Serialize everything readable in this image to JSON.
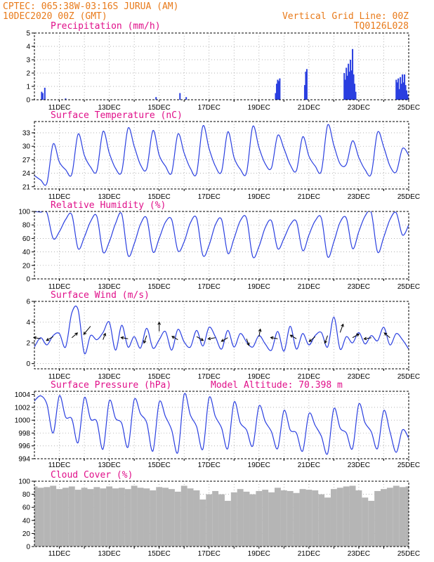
{
  "header": {
    "left_line1": "CPTEC:   065:38W-03:16S   JURUA (AM)",
    "left_line2": "10DEC2020 00Z (GMT)",
    "right_line1": "Vertical Grid Line: 00Z",
    "right_line2": "TQ0126L028"
  },
  "x_tick_labels": [
    "11DEC",
    "13DEC",
    "15DEC",
    "17DEC",
    "19DEC",
    "21DEC",
    "23DEC",
    "25DEC"
  ],
  "panels": {
    "precip": {
      "title": "Precipitation (mm/h)",
      "y_ticks": [
        "0",
        "1",
        "2",
        "3",
        "4",
        "5"
      ]
    },
    "temp": {
      "title": "Surface Temperature (nC)",
      "y_ticks": [
        "21",
        "24",
        "27",
        "30",
        "33"
      ]
    },
    "rh": {
      "title": "Relative Humidity (%)",
      "y_ticks": [
        "0",
        "20",
        "40",
        "60",
        "80",
        "100"
      ]
    },
    "wind": {
      "title": "Surface Wind (m/s)",
      "y_ticks": [
        "0",
        "2",
        "4",
        "6"
      ]
    },
    "pressure": {
      "title": "Surface Pressure (hPa)",
      "altitude": "Model Altitude: 70.398 m",
      "y_ticks": [
        "994",
        "996",
        "998",
        "1000",
        "1002",
        "1004"
      ]
    },
    "cloud": {
      "title": "Cloud Cover (%)",
      "y_ticks": [
        "0",
        "20",
        "40",
        "60",
        "80",
        "100"
      ]
    }
  },
  "chart_data": [
    {
      "type": "bar",
      "title": "Precipitation (mm/h)",
      "x_start": "10DEC2020 00Z",
      "x_end": "25DEC2020 00Z",
      "ylim": [
        0,
        5
      ],
      "grid": true,
      "bars": [
        {
          "x": "10DEC 07Z",
          "y": 0.6
        },
        {
          "x": "10DEC 08Z",
          "y": 0.5
        },
        {
          "x": "10DEC 10Z",
          "y": 0.9
        },
        {
          "x": "11DEC 06Z",
          "y": 0.1
        },
        {
          "x": "14DEC 21Z",
          "y": 0.2
        },
        {
          "x": "15DEC 20Z",
          "y": 0.5
        },
        {
          "x": "16DEC 02Z",
          "y": 0.2
        },
        {
          "x": "19DEC 16Z",
          "y": 0.5
        },
        {
          "x": "19DEC 17Z",
          "y": 1.2
        },
        {
          "x": "19DEC 18Z",
          "y": 1.5
        },
        {
          "x": "19DEC 19Z",
          "y": 1.4
        },
        {
          "x": "19DEC 20Z",
          "y": 1.6
        },
        {
          "x": "20DEC 20Z",
          "y": 1.1
        },
        {
          "x": "20DEC 21Z",
          "y": 2.1
        },
        {
          "x": "20DEC 22Z",
          "y": 2.3
        },
        {
          "x": "22DEC 10Z",
          "y": 2.0
        },
        {
          "x": "22DEC 11Z",
          "y": 1.5
        },
        {
          "x": "22DEC 12Z",
          "y": 2.4
        },
        {
          "x": "22DEC 13Z",
          "y": 1.8
        },
        {
          "x": "22DEC 14Z",
          "y": 2.7
        },
        {
          "x": "22DEC 15Z",
          "y": 2.1
        },
        {
          "x": "22DEC 16Z",
          "y": 3.0
        },
        {
          "x": "22DEC 17Z",
          "y": 2.2
        },
        {
          "x": "22DEC 18Z",
          "y": 3.8
        },
        {
          "x": "22DEC 19Z",
          "y": 1.9
        },
        {
          "x": "22DEC 20Z",
          "y": 1.2
        },
        {
          "x": "22DEC 21Z",
          "y": 0.6
        },
        {
          "x": "24DEC 12Z",
          "y": 1.5
        },
        {
          "x": "24DEC 13Z",
          "y": 1.3
        },
        {
          "x": "24DEC 14Z",
          "y": 1.6
        },
        {
          "x": "24DEC 15Z",
          "y": 0.8
        },
        {
          "x": "24DEC 16Z",
          "y": 1.7
        },
        {
          "x": "24DEC 17Z",
          "y": 1.2
        },
        {
          "x": "24DEC 18Z",
          "y": 1.9
        },
        {
          "x": "24DEC 19Z",
          "y": 1.3
        },
        {
          "x": "24DEC 20Z",
          "y": 1.9
        },
        {
          "x": "24DEC 21Z",
          "y": 1.1
        },
        {
          "x": "24DEC 22Z",
          "y": 0.7
        },
        {
          "x": "24DEC 23Z",
          "y": 0.4
        }
      ]
    },
    {
      "type": "line",
      "title": "Surface Temperature (nC)",
      "ylim": [
        20.5,
        35.5
      ],
      "grid": true,
      "x": [
        "10DEC 00Z",
        "10DEC 06Z",
        "10DEC 12Z",
        "10DEC 18Z",
        "11DEC 00Z",
        "11DEC 06Z",
        "11DEC 12Z",
        "11DEC 18Z",
        "12DEC 00Z",
        "12DEC 06Z",
        "12DEC 12Z",
        "12DEC 18Z",
        "13DEC 00Z",
        "13DEC 06Z",
        "13DEC 12Z",
        "13DEC 18Z",
        "14DEC 00Z",
        "14DEC 06Z",
        "14DEC 12Z",
        "14DEC 18Z",
        "15DEC 00Z",
        "15DEC 06Z",
        "15DEC 12Z",
        "15DEC 18Z",
        "16DEC 00Z",
        "16DEC 06Z",
        "16DEC 12Z",
        "16DEC 18Z",
        "17DEC 00Z",
        "17DEC 06Z",
        "17DEC 12Z",
        "17DEC 18Z",
        "18DEC 00Z",
        "18DEC 06Z",
        "18DEC 12Z",
        "18DEC 18Z",
        "19DEC 00Z",
        "19DEC 06Z",
        "19DEC 12Z",
        "19DEC 18Z",
        "20DEC 00Z",
        "20DEC 06Z",
        "20DEC 12Z",
        "20DEC 18Z",
        "21DEC 00Z",
        "21DEC 06Z",
        "21DEC 12Z",
        "21DEC 18Z",
        "22DEC 00Z",
        "22DEC 06Z",
        "22DEC 12Z",
        "22DEC 18Z",
        "23DEC 00Z",
        "23DEC 06Z",
        "23DEC 12Z",
        "23DEC 18Z",
        "24DEC 00Z",
        "24DEC 06Z",
        "24DEC 12Z",
        "24DEC 18Z",
        "25DEC 00Z"
      ],
      "values": [
        23.5,
        22.5,
        21.8,
        30.5,
        26.5,
        24.8,
        23.8,
        32.7,
        28.0,
        25.4,
        24.5,
        33.3,
        28.5,
        25.1,
        24.4,
        34.0,
        30.0,
        25.9,
        25.0,
        33.5,
        28.0,
        25.6,
        24.1,
        32.7,
        28.5,
        25.1,
        24.0,
        34.5,
        29.5,
        25.6,
        24.4,
        33.2,
        27.5,
        24.9,
        24.1,
        34.4,
        29.7,
        26.1,
        25.2,
        32.4,
        29.5,
        25.9,
        24.6,
        32.1,
        27.8,
        25.6,
        24.5,
        34.7,
        30.2,
        26.1,
        26.0,
        31.2,
        27.5,
        24.8,
        23.9,
        33.1,
        29.8,
        25.6,
        24.3,
        29.5,
        28.0
      ]
    },
    {
      "type": "line",
      "title": "Relative Humidity (%)",
      "ylim": [
        0,
        100
      ],
      "grid": true,
      "x": [
        "10DEC 00Z",
        "10DEC 06Z",
        "10DEC 12Z",
        "10DEC 18Z",
        "11DEC 00Z",
        "11DEC 06Z",
        "11DEC 12Z",
        "11DEC 18Z",
        "12DEC 00Z",
        "12DEC 06Z",
        "12DEC 12Z",
        "12DEC 18Z",
        "13DEC 00Z",
        "13DEC 06Z",
        "13DEC 12Z",
        "13DEC 18Z",
        "14DEC 00Z",
        "14DEC 06Z",
        "14DEC 12Z",
        "14DEC 18Z",
        "15DEC 00Z",
        "15DEC 06Z",
        "15DEC 12Z",
        "15DEC 18Z",
        "16DEC 00Z",
        "16DEC 06Z",
        "16DEC 12Z",
        "16DEC 18Z",
        "17DEC 00Z",
        "17DEC 06Z",
        "17DEC 12Z",
        "17DEC 18Z",
        "18DEC 00Z",
        "18DEC 06Z",
        "18DEC 12Z",
        "18DEC 18Z",
        "19DEC 00Z",
        "19DEC 06Z",
        "19DEC 12Z",
        "19DEC 18Z",
        "20DEC 00Z",
        "20DEC 06Z",
        "20DEC 12Z",
        "20DEC 18Z",
        "21DEC 00Z",
        "21DEC 06Z",
        "21DEC 12Z",
        "21DEC 18Z",
        "22DEC 00Z",
        "22DEC 06Z",
        "22DEC 12Z",
        "22DEC 18Z",
        "23DEC 00Z",
        "23DEC 06Z",
        "23DEC 12Z",
        "23DEC 18Z",
        "24DEC 00Z",
        "24DEC 06Z",
        "24DEC 12Z",
        "24DEC 18Z",
        "25DEC 00Z"
      ],
      "values": [
        100,
        99,
        98,
        60,
        70,
        88,
        95,
        45,
        62,
        85,
        93,
        40,
        55,
        82,
        96,
        35,
        52,
        81,
        90,
        40,
        60,
        84,
        88,
        42,
        55,
        83,
        90,
        35,
        50,
        80,
        88,
        38,
        60,
        86,
        90,
        33,
        48,
        76,
        86,
        45,
        60,
        80,
        85,
        42,
        65,
        86,
        90,
        33,
        55,
        84,
        90,
        45,
        70,
        93,
        98,
        40,
        62,
        88,
        98,
        65,
        80
      ]
    },
    {
      "type": "line",
      "title": "Surface Wind (m/s)",
      "ylim": [
        -0.5,
        6
      ],
      "grid": true,
      "x": [
        "10DEC 00Z",
        "10DEC 06Z",
        "10DEC 12Z",
        "10DEC 18Z",
        "11DEC 00Z",
        "11DEC 06Z",
        "11DEC 12Z",
        "11DEC 18Z",
        "12DEC 00Z",
        "12DEC 06Z",
        "12DEC 12Z",
        "12DEC 18Z",
        "13DEC 00Z",
        "13DEC 06Z",
        "13DEC 12Z",
        "13DEC 18Z",
        "14DEC 00Z",
        "14DEC 06Z",
        "14DEC 12Z",
        "14DEC 18Z",
        "15DEC 00Z",
        "15DEC 06Z",
        "15DEC 12Z",
        "15DEC 18Z",
        "16DEC 00Z",
        "16DEC 06Z",
        "16DEC 12Z",
        "16DEC 18Z",
        "17DEC 00Z",
        "17DEC 06Z",
        "17DEC 12Z",
        "17DEC 18Z",
        "18DEC 00Z",
        "18DEC 06Z",
        "18DEC 12Z",
        "18DEC 18Z",
        "19DEC 00Z",
        "19DEC 06Z",
        "19DEC 12Z",
        "19DEC 18Z",
        "20DEC 00Z",
        "20DEC 06Z",
        "20DEC 12Z",
        "20DEC 18Z",
        "21DEC 00Z",
        "21DEC 06Z",
        "21DEC 12Z",
        "21DEC 18Z",
        "22DEC 00Z",
        "22DEC 06Z",
        "22DEC 12Z",
        "22DEC 18Z",
        "23DEC 00Z",
        "23DEC 06Z",
        "23DEC 12Z",
        "23DEC 18Z",
        "24DEC 00Z",
        "24DEC 06Z",
        "24DEC 12Z",
        "24DEC 18Z",
        "25DEC 00Z"
      ],
      "values": [
        1.6,
        2.5,
        1.8,
        2.7,
        2.9,
        1.6,
        4.9,
        5.2,
        1.0,
        2.7,
        2.3,
        3.0,
        4.0,
        1.3,
        3.7,
        1.6,
        2.6,
        1.5,
        3.4,
        1.5,
        2.3,
        3.1,
        1.3,
        3.3,
        2.1,
        1.6,
        3.2,
        1.7,
        3.5,
        2.6,
        1.4,
        3.2,
        1.6,
        2.9,
        2.1,
        1.6,
        2.7,
        1.9,
        1.3,
        3.1,
        1.2,
        3.6,
        1.4,
        2.9,
        1.8,
        2.7,
        3.0,
        1.6,
        4.5,
        1.4,
        2.6,
        2.0,
        3.0,
        1.9,
        2.7,
        2.2,
        3.5,
        1.8,
        2.9,
        2.3,
        1.4
      ],
      "barbs": [
        {
          "x": "10DEC 06Z",
          "speed": 2.4,
          "from_deg": 100
        },
        {
          "x": "10DEC 18Z",
          "speed": 2.6,
          "from_deg": 60
        },
        {
          "x": "11DEC 12Z",
          "speed": 2.5,
          "from_deg": 230
        },
        {
          "x": "12DEC 06Z",
          "speed": 3.6,
          "from_deg": 40
        },
        {
          "x": "12DEC 18Z",
          "speed": 2.3,
          "from_deg": 200
        },
        {
          "x": "13DEC 18Z",
          "speed": 2.4,
          "from_deg": 100
        },
        {
          "x": "14DEC 12Z",
          "speed": 2.7,
          "from_deg": 20
        },
        {
          "x": "15DEC 00Z",
          "speed": 3.1,
          "from_deg": 180
        },
        {
          "x": "15DEC 18Z",
          "speed": 2.3,
          "from_deg": 120
        },
        {
          "x": "16DEC 12Z",
          "speed": 2.6,
          "from_deg": 300
        },
        {
          "x": "17DEC 06Z",
          "speed": 2.5,
          "from_deg": 80
        },
        {
          "x": "17DEC 18Z",
          "speed": 2.5,
          "from_deg": 60
        },
        {
          "x": "18DEC 12Z",
          "speed": 2.4,
          "from_deg": 340
        },
        {
          "x": "19DEC 00Z",
          "speed": 2.6,
          "from_deg": 190
        },
        {
          "x": "19DEC 18Z",
          "speed": 2.4,
          "from_deg": 100
        },
        {
          "x": "20DEC 12Z",
          "speed": 2.4,
          "from_deg": 120
        },
        {
          "x": "21DEC 06Z",
          "speed": 2.6,
          "from_deg": 50
        },
        {
          "x": "21DEC 18Z",
          "speed": 2.7,
          "from_deg": 20
        },
        {
          "x": "22DEC 06Z",
          "speed": 3.0,
          "from_deg": 200
        },
        {
          "x": "22DEC 18Z",
          "speed": 2.5,
          "from_deg": 240
        },
        {
          "x": "23DEC 12Z",
          "speed": 2.5,
          "from_deg": 80
        },
        {
          "x": "24DEC 06Z",
          "speed": 2.5,
          "from_deg": 130
        }
      ]
    },
    {
      "type": "line",
      "title": "Surface Pressure (hPa)",
      "ylim": [
        994,
        1004.5
      ],
      "grid": true,
      "x": [
        "10DEC 00Z",
        "10DEC 06Z",
        "10DEC 12Z",
        "10DEC 18Z",
        "11DEC 00Z",
        "11DEC 06Z",
        "11DEC 12Z",
        "11DEC 18Z",
        "12DEC 00Z",
        "12DEC 06Z",
        "12DEC 12Z",
        "12DEC 18Z",
        "13DEC 00Z",
        "13DEC 06Z",
        "13DEC 12Z",
        "13DEC 18Z",
        "14DEC 00Z",
        "14DEC 06Z",
        "14DEC 12Z",
        "14DEC 18Z",
        "15DEC 00Z",
        "15DEC 06Z",
        "15DEC 12Z",
        "15DEC 18Z",
        "16DEC 00Z",
        "16DEC 06Z",
        "16DEC 12Z",
        "16DEC 18Z",
        "17DEC 00Z",
        "17DEC 06Z",
        "17DEC 12Z",
        "17DEC 18Z",
        "18DEC 00Z",
        "18DEC 06Z",
        "18DEC 12Z",
        "18DEC 18Z",
        "19DEC 00Z",
        "19DEC 06Z",
        "19DEC 12Z",
        "19DEC 18Z",
        "20DEC 00Z",
        "20DEC 06Z",
        "20DEC 12Z",
        "20DEC 18Z",
        "21DEC 00Z",
        "21DEC 06Z",
        "21DEC 12Z",
        "21DEC 18Z",
        "22DEC 00Z",
        "22DEC 06Z",
        "22DEC 12Z",
        "22DEC 18Z",
        "23DEC 00Z",
        "23DEC 06Z",
        "23DEC 12Z",
        "23DEC 18Z",
        "24DEC 00Z",
        "24DEC 06Z",
        "24DEC 12Z",
        "24DEC 18Z",
        "25DEC 00Z"
      ],
      "values": [
        1003.0,
        1003.8,
        1002.5,
        998.0,
        1003.8,
        1000.5,
        1000.2,
        996.5,
        1003.5,
        1000.2,
        999.8,
        995.5,
        1003.0,
        1000.3,
        999.5,
        995.8,
        1003.2,
        1001.0,
        999.6,
        995.2,
        1002.8,
        1000.6,
        998.5,
        995.0,
        1004.0,
        1000.8,
        999.0,
        995.5,
        1003.5,
        1000.6,
        998.8,
        995.6,
        1002.8,
        999.6,
        998.5,
        996.0,
        1002.2,
        999.8,
        998.2,
        995.6,
        1001.5,
        998.5,
        998.0,
        995.2,
        1001.0,
        999.2,
        997.5,
        994.8,
        1001.8,
        998.8,
        998.0,
        995.6,
        1002.5,
        999.6,
        998.2,
        995.6,
        1001.5,
        998.2,
        995.0,
        998.5,
        997.2
      ]
    },
    {
      "type": "bar",
      "title": "Cloud Cover (%)",
      "ylim": [
        0,
        100
      ],
      "grid": true,
      "x": [
        "10DEC 00Z",
        "10DEC 06Z",
        "10DEC 12Z",
        "10DEC 18Z",
        "11DEC 00Z",
        "11DEC 06Z",
        "11DEC 12Z",
        "11DEC 18Z",
        "12DEC 00Z",
        "12DEC 06Z",
        "12DEC 12Z",
        "12DEC 18Z",
        "13DEC 00Z",
        "13DEC 06Z",
        "13DEC 12Z",
        "13DEC 18Z",
        "14DEC 00Z",
        "14DEC 06Z",
        "14DEC 12Z",
        "14DEC 18Z",
        "15DEC 00Z",
        "15DEC 06Z",
        "15DEC 12Z",
        "15DEC 18Z",
        "16DEC 00Z",
        "16DEC 06Z",
        "16DEC 12Z",
        "16DEC 18Z",
        "17DEC 00Z",
        "17DEC 06Z",
        "17DEC 12Z",
        "17DEC 18Z",
        "18DEC 00Z",
        "18DEC 06Z",
        "18DEC 12Z",
        "18DEC 18Z",
        "19DEC 00Z",
        "19DEC 06Z",
        "19DEC 12Z",
        "19DEC 18Z",
        "20DEC 00Z",
        "20DEC 06Z",
        "20DEC 12Z",
        "20DEC 18Z",
        "21DEC 00Z",
        "21DEC 06Z",
        "21DEC 12Z",
        "21DEC 18Z",
        "22DEC 00Z",
        "22DEC 06Z",
        "22DEC 12Z",
        "22DEC 18Z",
        "23DEC 00Z",
        "23DEC 06Z",
        "23DEC 12Z",
        "23DEC 18Z",
        "24DEC 00Z",
        "24DEC 06Z",
        "24DEC 12Z",
        "24DEC 18Z",
        "25DEC 00Z"
      ],
      "values": [
        92,
        90,
        91,
        93,
        88,
        90,
        92,
        87,
        90,
        88,
        91,
        89,
        92,
        89,
        90,
        88,
        93,
        90,
        89,
        86,
        91,
        90,
        88,
        84,
        93,
        89,
        86,
        72,
        80,
        85,
        80,
        70,
        83,
        88,
        84,
        80,
        85,
        87,
        83,
        90,
        86,
        85,
        82,
        88,
        87,
        86,
        80,
        75,
        88,
        90,
        92,
        93,
        86,
        75,
        70,
        85,
        88,
        90,
        93,
        91,
        92
      ]
    }
  ]
}
